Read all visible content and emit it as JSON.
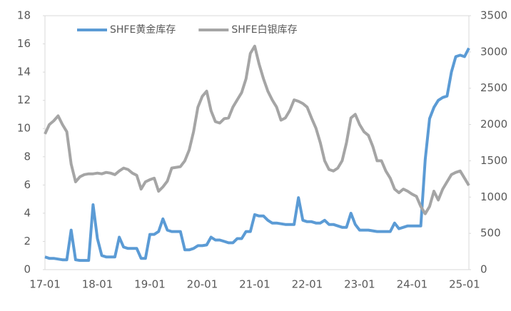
{
  "chart_data": {
    "type": "line",
    "categories": [
      "17-01",
      null,
      null,
      null,
      null,
      null,
      null,
      null,
      null,
      null,
      null,
      null,
      "18-01",
      null,
      null,
      null,
      null,
      null,
      null,
      null,
      null,
      null,
      null,
      null,
      "19-01",
      null,
      null,
      null,
      null,
      null,
      null,
      null,
      null,
      null,
      null,
      null,
      "20-01",
      null,
      null,
      null,
      null,
      null,
      null,
      null,
      null,
      null,
      null,
      null,
      "21-01",
      null,
      null,
      null,
      null,
      null,
      null,
      null,
      null,
      null,
      null,
      null,
      "22-01",
      null,
      null,
      null,
      null,
      null,
      null,
      null,
      null,
      null,
      null,
      null,
      "23-01",
      null,
      null,
      null,
      null,
      null,
      null,
      null,
      null,
      null,
      null,
      null,
      "24-01",
      null,
      null,
      null,
      null,
      null,
      null,
      null,
      null,
      null,
      null,
      null,
      "25-01",
      null
    ],
    "series": [
      {
        "name": "SHFE黄金库存",
        "color": "#5b9bd5",
        "axis": "y",
        "values": [
          0.9,
          0.8,
          0.8,
          0.75,
          0.7,
          0.7,
          2.8,
          0.7,
          0.65,
          0.65,
          0.65,
          4.6,
          2.2,
          1.0,
          0.9,
          0.9,
          0.9,
          2.3,
          1.6,
          1.5,
          1.5,
          1.5,
          0.8,
          0.8,
          2.5,
          2.5,
          2.7,
          3.6,
          2.8,
          2.7,
          2.7,
          2.7,
          1.4,
          1.4,
          1.5,
          1.7,
          1.7,
          1.75,
          2.3,
          2.1,
          2.1,
          2.0,
          1.9,
          1.9,
          2.2,
          2.2,
          2.7,
          2.7,
          3.9,
          3.8,
          3.8,
          3.5,
          3.3,
          3.3,
          3.25,
          3.2,
          3.2,
          3.2,
          5.1,
          3.5,
          3.4,
          3.4,
          3.3,
          3.3,
          3.5,
          3.2,
          3.2,
          3.1,
          3.0,
          3.0,
          4.0,
          3.2,
          2.8,
          2.8,
          2.8,
          2.75,
          2.7,
          2.7,
          2.7,
          2.7,
          3.3,
          2.9,
          3.0,
          3.1,
          3.1,
          3.1,
          3.1,
          7.8,
          10.7,
          11.5,
          12.0,
          12.2,
          12.3,
          14.0,
          15.1,
          15.2,
          15.1,
          15.7
        ]
      },
      {
        "name": "SHFE白银库存",
        "color": "#a5a5a5",
        "axis": "y2",
        "values": [
          1870,
          2000,
          2050,
          2120,
          2000,
          1900,
          1455,
          1210,
          1280,
          1310,
          1320,
          1320,
          1330,
          1320,
          1340,
          1330,
          1310,
          1360,
          1400,
          1380,
          1330,
          1300,
          1110,
          1210,
          1240,
          1260,
          1080,
          1140,
          1220,
          1400,
          1410,
          1420,
          1500,
          1650,
          1900,
          2240,
          2390,
          2460,
          2190,
          2040,
          2020,
          2080,
          2090,
          2240,
          2340,
          2440,
          2630,
          2980,
          3080,
          2830,
          2630,
          2460,
          2340,
          2240,
          2060,
          2090,
          2190,
          2340,
          2320,
          2290,
          2240,
          2090,
          1950,
          1750,
          1500,
          1380,
          1360,
          1400,
          1500,
          1750,
          2090,
          2140,
          2000,
          1900,
          1850,
          1700,
          1500,
          1500,
          1360,
          1260,
          1110,
          1060,
          1110,
          1080,
          1040,
          1010,
          870,
          770,
          870,
          1080,
          960,
          1110,
          1210,
          1310,
          1340,
          1360,
          1260,
          1160
        ]
      }
    ],
    "ylim": [
      0,
      18
    ],
    "yticks": [
      0,
      2,
      4,
      6,
      8,
      10,
      12,
      14,
      16,
      18
    ],
    "y2lim": [
      0,
      3500
    ],
    "y2ticks": [
      0,
      500,
      1000,
      1500,
      2000,
      2500,
      3000,
      3500
    ],
    "grid": false
  }
}
